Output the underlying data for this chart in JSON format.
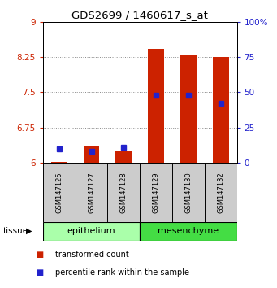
{
  "title": "GDS2699 / 1460617_s_at",
  "samples": [
    "GSM147125",
    "GSM147127",
    "GSM147128",
    "GSM147129",
    "GSM147130",
    "GSM147132"
  ],
  "red_values": [
    6.02,
    6.35,
    6.25,
    8.42,
    8.28,
    8.25
  ],
  "blue_values_pct": [
    10,
    8,
    11,
    48,
    48,
    42
  ],
  "ylim": [
    6.0,
    9.0
  ],
  "yticks": [
    6,
    6.75,
    7.5,
    8.25,
    9
  ],
  "ytick_labels_left": [
    "6",
    "6.75",
    "7.5",
    "8.25",
    "9"
  ],
  "ytick_labels_right": [
    "0",
    "25",
    "50",
    "75",
    "100%"
  ],
  "groups": [
    {
      "label": "epithelium",
      "samples": [
        0,
        1,
        2
      ],
      "color": "#aaffaa"
    },
    {
      "label": "mesenchyme",
      "samples": [
        3,
        4,
        5
      ],
      "color": "#44dd44"
    }
  ],
  "tissue_label": "tissue",
  "red_color": "#cc2200",
  "blue_color": "#2222cc",
  "bar_width": 0.5,
  "marker_size": 5,
  "grid_color": "#888888",
  "axis_bg": "#ffffff",
  "sample_bg": "#cccccc",
  "left_label_color": "#cc2200",
  "right_label_color": "#2222cc",
  "legend_red_label": "transformed count",
  "legend_blue_label": "percentile rank within the sample"
}
